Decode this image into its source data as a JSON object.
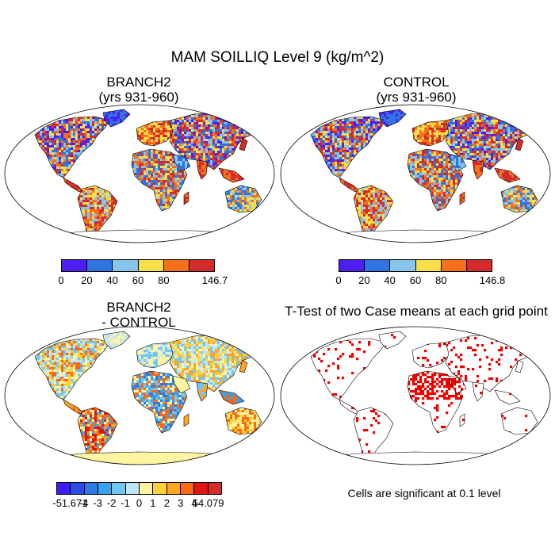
{
  "main_title": "MAM SOILLIQ Level 9 (kg/m^2)",
  "panels": {
    "branch2": {
      "title_line1": "BRANCH2",
      "title_line2": "(yrs 931-960)"
    },
    "control": {
      "title_line1": "CONTROL",
      "title_line2": "(yrs 931-960)"
    },
    "difference": {
      "title_line1": "BRANCH2",
      "title_line2": "- CONTROL"
    },
    "ttest": {
      "title": "T-Test of two Case means at each grid point",
      "note": "Cells are significant at 0.1 level"
    }
  },
  "colorbars": {
    "branch2": {
      "labels": [
        "0",
        "20",
        "40",
        "60",
        "80",
        "146.7"
      ],
      "colors": [
        "#4d1df2",
        "#2f74e0",
        "#86c4ec",
        "#f7df4a",
        "#f7701d",
        "#d42c2c"
      ]
    },
    "control": {
      "labels": [
        "0",
        "20",
        "40",
        "60",
        "80",
        "146.8"
      ],
      "colors": [
        "#4d1df2",
        "#2f74e0",
        "#86c4ec",
        "#f7df4a",
        "#f7701d",
        "#d42c2c"
      ]
    },
    "difference": {
      "labels": [
        "-51.671",
        "-4",
        "-3",
        "-2",
        "-1",
        "0",
        "1",
        "2",
        "3",
        "4",
        "54.079"
      ],
      "colors": [
        "#3a1ef2",
        "#2a4be6",
        "#2e7ae4",
        "#38a2ee",
        "#72c6f1",
        "#c2e5f5",
        "#fff5a0",
        "#ffd23d",
        "#ffa51f",
        "#f96a14",
        "#e31414",
        "#d42c2c"
      ]
    }
  },
  "colors": {
    "significant": "#ee0000",
    "map_outline": "#000000"
  }
}
